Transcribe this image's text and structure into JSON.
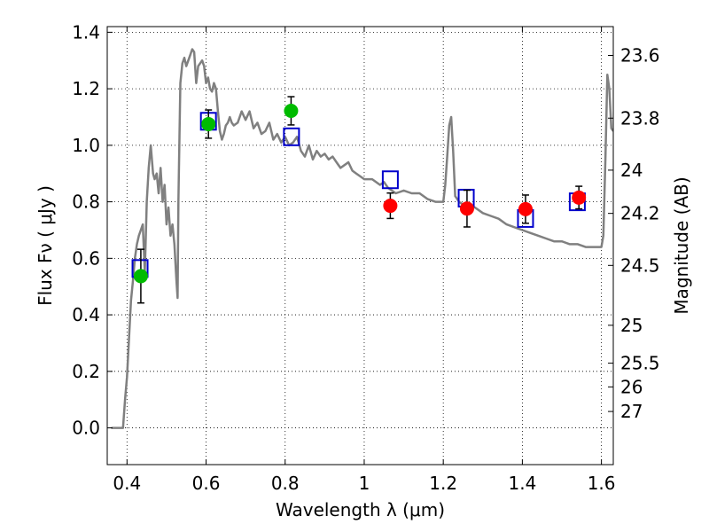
{
  "chart_data": {
    "type": "line",
    "xlabel": "Wavelength  λ (μm)",
    "ylabel": "Flux  Fν  ( μJy )",
    "ylabel_right": "Magnitude (AB)",
    "xlim": [
      0.35,
      1.63
    ],
    "ylim": [
      -0.13,
      1.42
    ],
    "grid": true,
    "x_ticks": [
      {
        "value": 0.4,
        "label": "0.4"
      },
      {
        "value": 0.6,
        "label": "0.6"
      },
      {
        "value": 0.8,
        "label": "0.8"
      },
      {
        "value": 1.0,
        "label": "1"
      },
      {
        "value": 1.2,
        "label": "1.2"
      },
      {
        "value": 1.4,
        "label": "1.4"
      },
      {
        "value": 1.6,
        "label": "1.6"
      }
    ],
    "y_ticks": [
      {
        "value": 0.0,
        "label": "0.0"
      },
      {
        "value": 0.2,
        "label": "0.2"
      },
      {
        "value": 0.4,
        "label": "0.4"
      },
      {
        "value": 0.6,
        "label": "0.6"
      },
      {
        "value": 0.8,
        "label": "0.8"
      },
      {
        "value": 1.0,
        "label": "1.0"
      },
      {
        "value": 1.2,
        "label": "1.2"
      },
      {
        "value": 1.4,
        "label": "1.4"
      }
    ],
    "right_ticks": [
      {
        "label": "23.6",
        "flux": 1.318
      },
      {
        "label": "23.8",
        "flux": 1.096
      },
      {
        "label": "24",
        "flux": 0.912
      },
      {
        "label": "24.2",
        "flux": 0.759
      },
      {
        "label": "24.5",
        "flux": 0.575
      },
      {
        "label": "25",
        "flux": 0.363
      },
      {
        "label": "25.5",
        "flux": 0.229
      },
      {
        "label": "26",
        "flux": 0.145
      },
      {
        "label": "27",
        "flux": 0.058
      }
    ],
    "series": [
      {
        "kind": "line",
        "color": "#808080",
        "x": [
          0.36,
          0.38,
          0.39,
          0.395,
          0.4,
          0.41,
          0.415,
          0.42,
          0.425,
          0.43,
          0.435,
          0.44,
          0.445,
          0.45,
          0.455,
          0.46,
          0.463,
          0.466,
          0.47,
          0.475,
          0.48,
          0.485,
          0.49,
          0.495,
          0.5,
          0.505,
          0.51,
          0.515,
          0.52,
          0.525,
          0.528,
          0.53,
          0.535,
          0.54,
          0.545,
          0.55,
          0.56,
          0.565,
          0.57,
          0.575,
          0.58,
          0.59,
          0.595,
          0.6,
          0.605,
          0.61,
          0.615,
          0.62,
          0.625,
          0.63,
          0.635,
          0.64,
          0.645,
          0.65,
          0.655,
          0.66,
          0.665,
          0.67,
          0.68,
          0.69,
          0.7,
          0.71,
          0.72,
          0.73,
          0.74,
          0.75,
          0.76,
          0.77,
          0.78,
          0.79,
          0.8,
          0.81,
          0.82,
          0.83,
          0.84,
          0.85,
          0.86,
          0.87,
          0.88,
          0.89,
          0.9,
          0.91,
          0.92,
          0.93,
          0.94,
          0.95,
          0.96,
          0.97,
          0.98,
          0.99,
          1.0,
          1.02,
          1.04,
          1.05,
          1.06,
          1.07,
          1.08,
          1.1,
          1.12,
          1.14,
          1.16,
          1.18,
          1.2,
          1.205,
          1.21,
          1.215,
          1.22,
          1.225,
          1.23,
          1.24,
          1.25,
          1.26,
          1.28,
          1.3,
          1.32,
          1.34,
          1.36,
          1.38,
          1.4,
          1.42,
          1.44,
          1.46,
          1.48,
          1.5,
          1.52,
          1.54,
          1.56,
          1.58,
          1.6,
          1.605,
          1.61,
          1.615,
          1.62,
          1.625,
          1.63
        ],
        "y": [
          0.0,
          0.0,
          0.0,
          0.1,
          0.18,
          0.45,
          0.52,
          0.6,
          0.65,
          0.68,
          0.7,
          0.72,
          0.55,
          0.8,
          0.92,
          1.0,
          0.95,
          0.9,
          0.88,
          0.9,
          0.83,
          0.92,
          0.8,
          0.86,
          0.72,
          0.78,
          0.68,
          0.72,
          0.65,
          0.52,
          0.46,
          0.8,
          1.22,
          1.29,
          1.31,
          1.28,
          1.32,
          1.34,
          1.33,
          1.22,
          1.28,
          1.3,
          1.28,
          1.22,
          1.24,
          1.2,
          1.19,
          1.22,
          1.2,
          1.12,
          1.05,
          1.02,
          1.04,
          1.07,
          1.08,
          1.1,
          1.08,
          1.07,
          1.08,
          1.12,
          1.09,
          1.12,
          1.06,
          1.08,
          1.04,
          1.05,
          1.08,
          1.02,
          1.04,
          1.01,
          1.03,
          1.0,
          1.01,
          1.03,
          0.98,
          0.96,
          1.0,
          0.95,
          0.98,
          0.96,
          0.97,
          0.95,
          0.96,
          0.94,
          0.92,
          0.93,
          0.94,
          0.91,
          0.9,
          0.89,
          0.88,
          0.88,
          0.86,
          0.87,
          0.85,
          0.84,
          0.83,
          0.84,
          0.83,
          0.83,
          0.81,
          0.8,
          0.8,
          0.86,
          0.96,
          1.07,
          1.1,
          0.98,
          0.82,
          0.8,
          0.79,
          0.78,
          0.78,
          0.76,
          0.75,
          0.74,
          0.72,
          0.71,
          0.7,
          0.69,
          0.68,
          0.67,
          0.66,
          0.66,
          0.65,
          0.65,
          0.64,
          0.64,
          0.64,
          0.68,
          0.95,
          1.25,
          1.2,
          1.06,
          1.05
        ]
      },
      {
        "kind": "box",
        "color": "#0000cc",
        "x": [
          0.433,
          0.606,
          0.816,
          1.066,
          1.258,
          1.408,
          1.539
        ],
        "y": [
          0.564,
          1.085,
          1.03,
          0.878,
          0.813,
          0.741,
          0.8
        ]
      },
      {
        "kind": "point",
        "color": "#00bb00",
        "x": [
          0.435,
          0.606,
          0.815
        ],
        "y": [
          0.537,
          1.075,
          1.122
        ],
        "err": [
          0.095,
          0.05,
          0.05
        ]
      },
      {
        "kind": "point",
        "color": "#ff0000",
        "x": [
          1.066,
          1.26,
          1.408,
          1.543
        ],
        "y": [
          0.786,
          0.776,
          0.774,
          0.815
        ],
        "err": [
          0.045,
          0.065,
          0.05,
          0.04
        ]
      }
    ]
  }
}
